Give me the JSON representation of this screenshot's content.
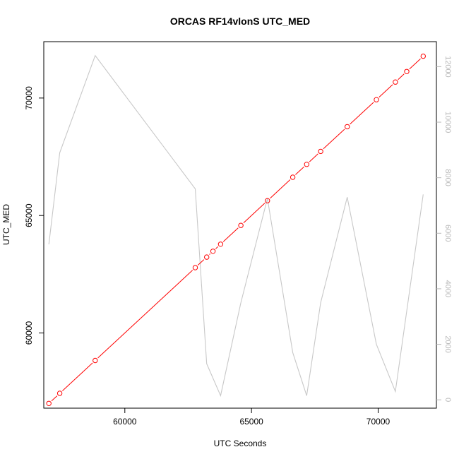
{
  "chart_data": {
    "type": "line",
    "title": "ORCAS RF14vlonS UTC_MED",
    "xlabel": "UTC Seconds",
    "ylabel": "UTC_MED",
    "xlim": [
      56800,
      72300
    ],
    "ylim": [
      56800,
      72400
    ],
    "x_ticks": [
      60000,
      65000,
      70000
    ],
    "y_ticks": [
      60000,
      65000,
      70000
    ],
    "y2lim": [
      -300,
      12900
    ],
    "y2_ticks": [
      0,
      2000,
      4000,
      6000,
      8000,
      10000,
      12000
    ],
    "grid": false,
    "colors": {
      "primary": "#ff0000",
      "secondary": "#c8c8c8",
      "axis": "#000000",
      "secondary_axis": "#b8b8b8"
    },
    "series": [
      {
        "axis": "left",
        "style": "line+circle",
        "x": [
          57000,
          57430,
          58830,
          62780,
          63230,
          63480,
          63780,
          64580,
          65630,
          66630,
          67180,
          67730,
          68780,
          69930,
          70680,
          71130,
          71780
        ],
        "y": [
          57000,
          57430,
          58830,
          62780,
          63230,
          63480,
          63780,
          64580,
          65630,
          66630,
          67180,
          67730,
          68780,
          69930,
          70680,
          71130,
          71780
        ]
      },
      {
        "axis": "right",
        "style": "line",
        "x": [
          57000,
          57430,
          58830,
          62780,
          63230,
          63780,
          64580,
          65630,
          66630,
          67180,
          67730,
          68780,
          69930,
          70680,
          71780
        ],
        "y": [
          5600,
          8900,
          12400,
          7600,
          1300,
          150,
          3500,
          7250,
          1700,
          150,
          3500,
          7300,
          2000,
          300,
          7400
        ]
      }
    ]
  }
}
